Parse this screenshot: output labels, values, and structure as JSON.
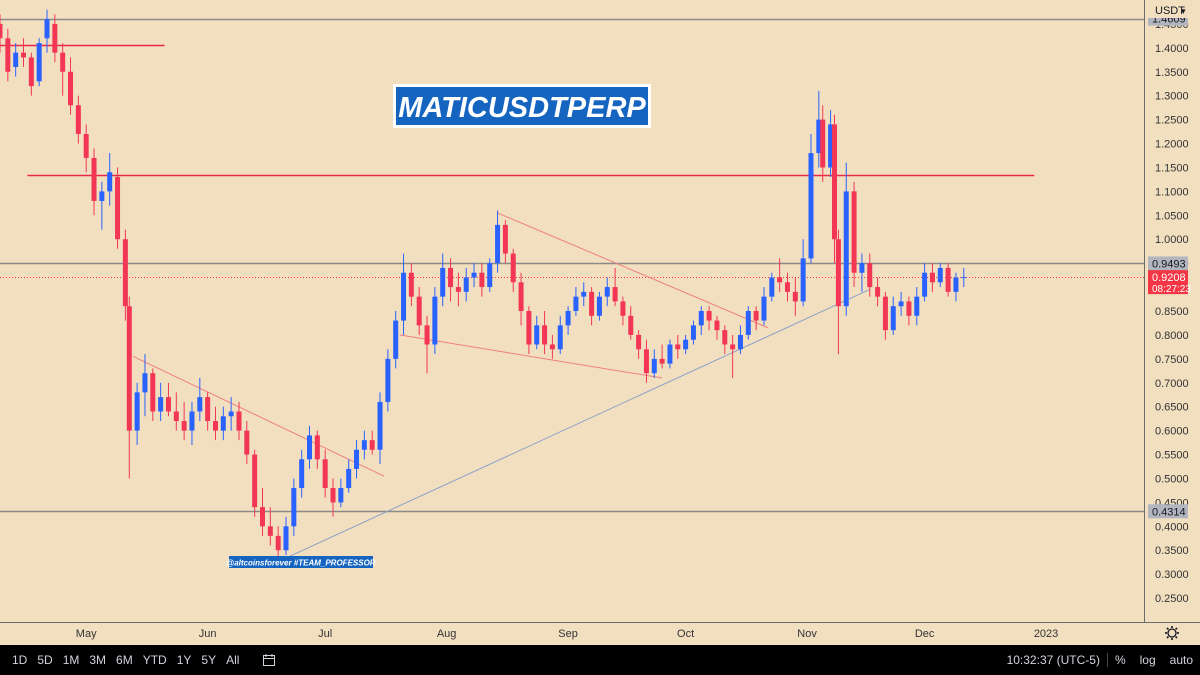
{
  "chart_data": {
    "type": "candlestick",
    "title": "MATICUSDTPERP",
    "watermark_label": "@altcoinsforever #TEAM_PROFESSOR",
    "currency": "USDT",
    "ylim": [
      0.2,
      1.5
    ],
    "y_ticks": [
      "0.2500",
      "0.3000",
      "0.3500",
      "0.4000",
      "0.4500",
      "0.5000",
      "0.5500",
      "0.6000",
      "0.6500",
      "0.7000",
      "0.7500",
      "0.8000",
      "0.8500",
      "0.9000",
      "0.9500",
      "1.0000",
      "1.0500",
      "1.1000",
      "1.1500",
      "1.2000",
      "1.2500",
      "1.3000",
      "1.3500",
      "1.4000",
      "1.4500"
    ],
    "x_ticks": [
      "May",
      "Jun",
      "Jul",
      "Aug",
      "Sep",
      "Oct",
      "Nov",
      "Dec",
      "2023"
    ],
    "x_tick_dates": [
      "2022-05-01",
      "2022-06-01",
      "2022-07-01",
      "2022-08-01",
      "2022-09-01",
      "2022-10-01",
      "2022-11-01",
      "2022-12-01",
      "2023-01-01"
    ],
    "x_domain": [
      "2022-04-09",
      "2023-01-26"
    ],
    "price_badges": [
      {
        "value": "1.4609",
        "color": "#b2b5be"
      },
      {
        "value": "0.9493",
        "color": "#b2b5be"
      },
      {
        "value": "0.9208",
        "sub": "08:27:23",
        "color": "#f23645"
      },
      {
        "value": "0.4314",
        "color": "#b2b5be"
      }
    ],
    "horizontal_levels": [
      {
        "value": 1.4609,
        "style": "gray"
      },
      {
        "value": 0.9493,
        "style": "gray"
      },
      {
        "value": 0.4314,
        "style": "gray"
      },
      {
        "value": 1.4069,
        "style": "red",
        "from": "2022-04-09",
        "to": "2022-05-21"
      },
      {
        "value": 1.1341,
        "style": "red",
        "from": "2022-04-16",
        "to": "2022-12-29"
      },
      {
        "value": 0.9208,
        "style": "red-dotted"
      }
    ],
    "trendlines": [
      {
        "points": [
          [
            "2022-06-20",
            0.33
          ],
          [
            "2022-11-17",
            0.895
          ]
        ],
        "color": "#8ca0c8"
      },
      {
        "points": [
          [
            "2022-05-13",
            0.755
          ],
          [
            "2022-07-16",
            0.505
          ]
        ],
        "color": "#f08080"
      },
      {
        "points": [
          [
            "2022-07-20",
            0.8
          ],
          [
            "2022-09-25",
            0.71
          ]
        ],
        "color": "#f08080"
      },
      {
        "points": [
          [
            "2022-08-14",
            1.055
          ],
          [
            "2022-10-22",
            0.815
          ]
        ],
        "color": "#f08080"
      }
    ],
    "candles": [
      [
        "2022-04-09",
        1.45,
        1.47,
        1.39,
        1.42
      ],
      [
        "2022-04-11",
        1.42,
        1.44,
        1.33,
        1.35
      ],
      [
        "2022-04-13",
        1.36,
        1.41,
        1.34,
        1.39
      ],
      [
        "2022-04-15",
        1.39,
        1.42,
        1.36,
        1.38
      ],
      [
        "2022-04-17",
        1.38,
        1.39,
        1.3,
        1.32
      ],
      [
        "2022-04-19",
        1.33,
        1.42,
        1.32,
        1.41
      ],
      [
        "2022-04-21",
        1.42,
        1.48,
        1.39,
        1.46
      ],
      [
        "2022-04-23",
        1.45,
        1.47,
        1.37,
        1.39
      ],
      [
        "2022-04-25",
        1.39,
        1.41,
        1.3,
        1.35
      ],
      [
        "2022-04-27",
        1.35,
        1.38,
        1.26,
        1.28
      ],
      [
        "2022-04-29",
        1.28,
        1.3,
        1.2,
        1.22
      ],
      [
        "2022-05-01",
        1.22,
        1.24,
        1.14,
        1.17
      ],
      [
        "2022-05-03",
        1.17,
        1.19,
        1.05,
        1.08
      ],
      [
        "2022-05-05",
        1.08,
        1.12,
        1.02,
        1.1
      ],
      [
        "2022-05-07",
        1.1,
        1.18,
        1.07,
        1.14
      ],
      [
        "2022-05-09",
        1.13,
        1.15,
        0.98,
        1.0
      ],
      [
        "2022-05-11",
        1.0,
        1.02,
        0.83,
        0.86
      ],
      [
        "2022-05-12",
        0.86,
        0.88,
        0.5,
        0.6
      ],
      [
        "2022-05-14",
        0.6,
        0.7,
        0.57,
        0.68
      ],
      [
        "2022-05-16",
        0.68,
        0.76,
        0.63,
        0.72
      ],
      [
        "2022-05-18",
        0.72,
        0.73,
        0.62,
        0.64
      ],
      [
        "2022-05-20",
        0.64,
        0.7,
        0.62,
        0.67
      ],
      [
        "2022-05-22",
        0.67,
        0.7,
        0.63,
        0.64
      ],
      [
        "2022-05-24",
        0.64,
        0.68,
        0.6,
        0.62
      ],
      [
        "2022-05-26",
        0.62,
        0.66,
        0.58,
        0.6
      ],
      [
        "2022-05-28",
        0.6,
        0.66,
        0.57,
        0.64
      ],
      [
        "2022-05-30",
        0.64,
        0.71,
        0.62,
        0.67
      ],
      [
        "2022-06-01",
        0.67,
        0.68,
        0.6,
        0.62
      ],
      [
        "2022-06-03",
        0.62,
        0.65,
        0.58,
        0.6
      ],
      [
        "2022-06-05",
        0.6,
        0.65,
        0.58,
        0.63
      ],
      [
        "2022-06-07",
        0.63,
        0.67,
        0.6,
        0.64
      ],
      [
        "2022-06-09",
        0.64,
        0.66,
        0.58,
        0.6
      ],
      [
        "2022-06-11",
        0.6,
        0.62,
        0.53,
        0.55
      ],
      [
        "2022-06-13",
        0.55,
        0.56,
        0.42,
        0.44
      ],
      [
        "2022-06-15",
        0.44,
        0.48,
        0.38,
        0.4
      ],
      [
        "2022-06-17",
        0.4,
        0.44,
        0.36,
        0.38
      ],
      [
        "2022-06-19",
        0.38,
        0.4,
        0.32,
        0.35
      ],
      [
        "2022-06-21",
        0.35,
        0.42,
        0.34,
        0.4
      ],
      [
        "2022-06-23",
        0.4,
        0.5,
        0.38,
        0.48
      ],
      [
        "2022-06-25",
        0.48,
        0.56,
        0.46,
        0.54
      ],
      [
        "2022-06-27",
        0.54,
        0.61,
        0.52,
        0.59
      ],
      [
        "2022-06-29",
        0.59,
        0.6,
        0.52,
        0.54
      ],
      [
        "2022-07-01",
        0.54,
        0.56,
        0.46,
        0.48
      ],
      [
        "2022-07-03",
        0.48,
        0.5,
        0.42,
        0.45
      ],
      [
        "2022-07-05",
        0.45,
        0.5,
        0.44,
        0.48
      ],
      [
        "2022-07-07",
        0.48,
        0.54,
        0.47,
        0.52
      ],
      [
        "2022-07-09",
        0.52,
        0.58,
        0.5,
        0.56
      ],
      [
        "2022-07-11",
        0.56,
        0.6,
        0.54,
        0.58
      ],
      [
        "2022-07-13",
        0.58,
        0.6,
        0.55,
        0.56
      ],
      [
        "2022-07-15",
        0.56,
        0.68,
        0.53,
        0.66
      ],
      [
        "2022-07-17",
        0.66,
        0.77,
        0.64,
        0.75
      ],
      [
        "2022-07-19",
        0.75,
        0.85,
        0.73,
        0.83
      ],
      [
        "2022-07-21",
        0.83,
        0.97,
        0.8,
        0.93
      ],
      [
        "2022-07-23",
        0.93,
        0.95,
        0.86,
        0.88
      ],
      [
        "2022-07-25",
        0.88,
        0.9,
        0.8,
        0.82
      ],
      [
        "2022-07-27",
        0.82,
        0.84,
        0.72,
        0.78
      ],
      [
        "2022-07-29",
        0.78,
        0.9,
        0.76,
        0.88
      ],
      [
        "2022-07-31",
        0.88,
        0.97,
        0.86,
        0.94
      ],
      [
        "2022-08-02",
        0.94,
        0.96,
        0.87,
        0.9
      ],
      [
        "2022-08-04",
        0.9,
        0.93,
        0.86,
        0.89
      ],
      [
        "2022-08-06",
        0.89,
        0.94,
        0.87,
        0.92
      ],
      [
        "2022-08-08",
        0.92,
        0.95,
        0.9,
        0.93
      ],
      [
        "2022-08-10",
        0.93,
        0.95,
        0.88,
        0.9
      ],
      [
        "2022-08-12",
        0.9,
        0.96,
        0.89,
        0.95
      ],
      [
        "2022-08-14",
        0.95,
        1.06,
        0.93,
        1.03
      ],
      [
        "2022-08-16",
        1.03,
        1.04,
        0.95,
        0.97
      ],
      [
        "2022-08-18",
        0.97,
        0.98,
        0.89,
        0.91
      ],
      [
        "2022-08-20",
        0.91,
        0.93,
        0.82,
        0.85
      ],
      [
        "2022-08-22",
        0.85,
        0.86,
        0.76,
        0.78
      ],
      [
        "2022-08-24",
        0.78,
        0.84,
        0.77,
        0.82
      ],
      [
        "2022-08-26",
        0.82,
        0.85,
        0.76,
        0.78
      ],
      [
        "2022-08-28",
        0.78,
        0.8,
        0.75,
        0.77
      ],
      [
        "2022-08-30",
        0.77,
        0.84,
        0.76,
        0.82
      ],
      [
        "2022-09-01",
        0.82,
        0.86,
        0.8,
        0.85
      ],
      [
        "2022-09-03",
        0.85,
        0.9,
        0.84,
        0.88
      ],
      [
        "2022-09-05",
        0.88,
        0.91,
        0.86,
        0.89
      ],
      [
        "2022-09-07",
        0.89,
        0.9,
        0.82,
        0.84
      ],
      [
        "2022-09-09",
        0.84,
        0.89,
        0.83,
        0.88
      ],
      [
        "2022-09-11",
        0.88,
        0.92,
        0.86,
        0.9
      ],
      [
        "2022-09-13",
        0.9,
        0.94,
        0.86,
        0.87
      ],
      [
        "2022-09-15",
        0.87,
        0.88,
        0.82,
        0.84
      ],
      [
        "2022-09-17",
        0.84,
        0.86,
        0.79,
        0.8
      ],
      [
        "2022-09-19",
        0.8,
        0.81,
        0.75,
        0.77
      ],
      [
        "2022-09-21",
        0.77,
        0.79,
        0.7,
        0.72
      ],
      [
        "2022-09-23",
        0.72,
        0.77,
        0.71,
        0.75
      ],
      [
        "2022-09-25",
        0.75,
        0.78,
        0.73,
        0.74
      ],
      [
        "2022-09-27",
        0.74,
        0.79,
        0.73,
        0.78
      ],
      [
        "2022-09-29",
        0.78,
        0.8,
        0.75,
        0.77
      ],
      [
        "2022-10-01",
        0.77,
        0.8,
        0.76,
        0.79
      ],
      [
        "2022-10-03",
        0.79,
        0.83,
        0.78,
        0.82
      ],
      [
        "2022-10-05",
        0.82,
        0.86,
        0.8,
        0.85
      ],
      [
        "2022-10-07",
        0.85,
        0.86,
        0.81,
        0.83
      ],
      [
        "2022-10-09",
        0.83,
        0.84,
        0.79,
        0.81
      ],
      [
        "2022-10-11",
        0.81,
        0.82,
        0.76,
        0.78
      ],
      [
        "2022-10-13",
        0.78,
        0.8,
        0.71,
        0.77
      ],
      [
        "2022-10-15",
        0.77,
        0.82,
        0.76,
        0.8
      ],
      [
        "2022-10-17",
        0.8,
        0.86,
        0.79,
        0.85
      ],
      [
        "2022-10-19",
        0.85,
        0.86,
        0.81,
        0.83
      ],
      [
        "2022-10-21",
        0.83,
        0.9,
        0.82,
        0.88
      ],
      [
        "2022-10-23",
        0.88,
        0.93,
        0.87,
        0.92
      ],
      [
        "2022-10-25",
        0.92,
        0.96,
        0.89,
        0.91
      ],
      [
        "2022-10-27",
        0.91,
        0.93,
        0.87,
        0.89
      ],
      [
        "2022-10-29",
        0.89,
        0.92,
        0.84,
        0.87
      ],
      [
        "2022-10-31",
        0.87,
        1.0,
        0.86,
        0.96
      ],
      [
        "2022-11-02",
        0.96,
        1.22,
        0.95,
        1.18
      ],
      [
        "2022-11-04",
        1.18,
        1.31,
        1.15,
        1.25
      ],
      [
        "2022-11-05",
        1.25,
        1.28,
        1.12,
        1.15
      ],
      [
        "2022-11-07",
        1.15,
        1.27,
        1.13,
        1.24
      ],
      [
        "2022-11-08",
        1.24,
        1.26,
        0.95,
        1.0
      ],
      [
        "2022-11-09",
        1.0,
        1.02,
        0.76,
        0.86
      ],
      [
        "2022-11-11",
        0.86,
        1.16,
        0.84,
        1.1
      ],
      [
        "2022-11-13",
        1.1,
        1.12,
        0.9,
        0.93
      ],
      [
        "2022-11-15",
        0.93,
        0.97,
        0.89,
        0.95
      ],
      [
        "2022-11-17",
        0.95,
        0.97,
        0.88,
        0.9
      ],
      [
        "2022-11-19",
        0.9,
        0.92,
        0.86,
        0.88
      ],
      [
        "2022-11-21",
        0.88,
        0.89,
        0.79,
        0.81
      ],
      [
        "2022-11-23",
        0.81,
        0.88,
        0.8,
        0.86
      ],
      [
        "2022-11-25",
        0.86,
        0.89,
        0.84,
        0.87
      ],
      [
        "2022-11-27",
        0.87,
        0.88,
        0.82,
        0.84
      ],
      [
        "2022-11-29",
        0.84,
        0.9,
        0.82,
        0.88
      ],
      [
        "2022-12-01",
        0.88,
        0.95,
        0.87,
        0.93
      ],
      [
        "2022-12-03",
        0.93,
        0.95,
        0.89,
        0.91
      ],
      [
        "2022-12-05",
        0.91,
        0.95,
        0.9,
        0.94
      ],
      [
        "2022-12-07",
        0.94,
        0.95,
        0.88,
        0.89
      ],
      [
        "2022-12-09",
        0.89,
        0.93,
        0.87,
        0.92
      ],
      [
        "2022-12-11",
        0.92,
        0.94,
        0.9,
        0.9208
      ]
    ]
  },
  "bottom_bar": {
    "ranges": [
      "1D",
      "5D",
      "1M",
      "3M",
      "6M",
      "YTD",
      "1Y",
      "5Y",
      "All"
    ],
    "time": "10:32:37 (UTC-5)",
    "percent": "%",
    "log": "log",
    "auto": "auto"
  },
  "colors": {
    "background": "#f2dfc0",
    "up": "#2962ff",
    "down": "#f23654",
    "title_bg": "#1565c0",
    "axis_text": "#333333"
  }
}
